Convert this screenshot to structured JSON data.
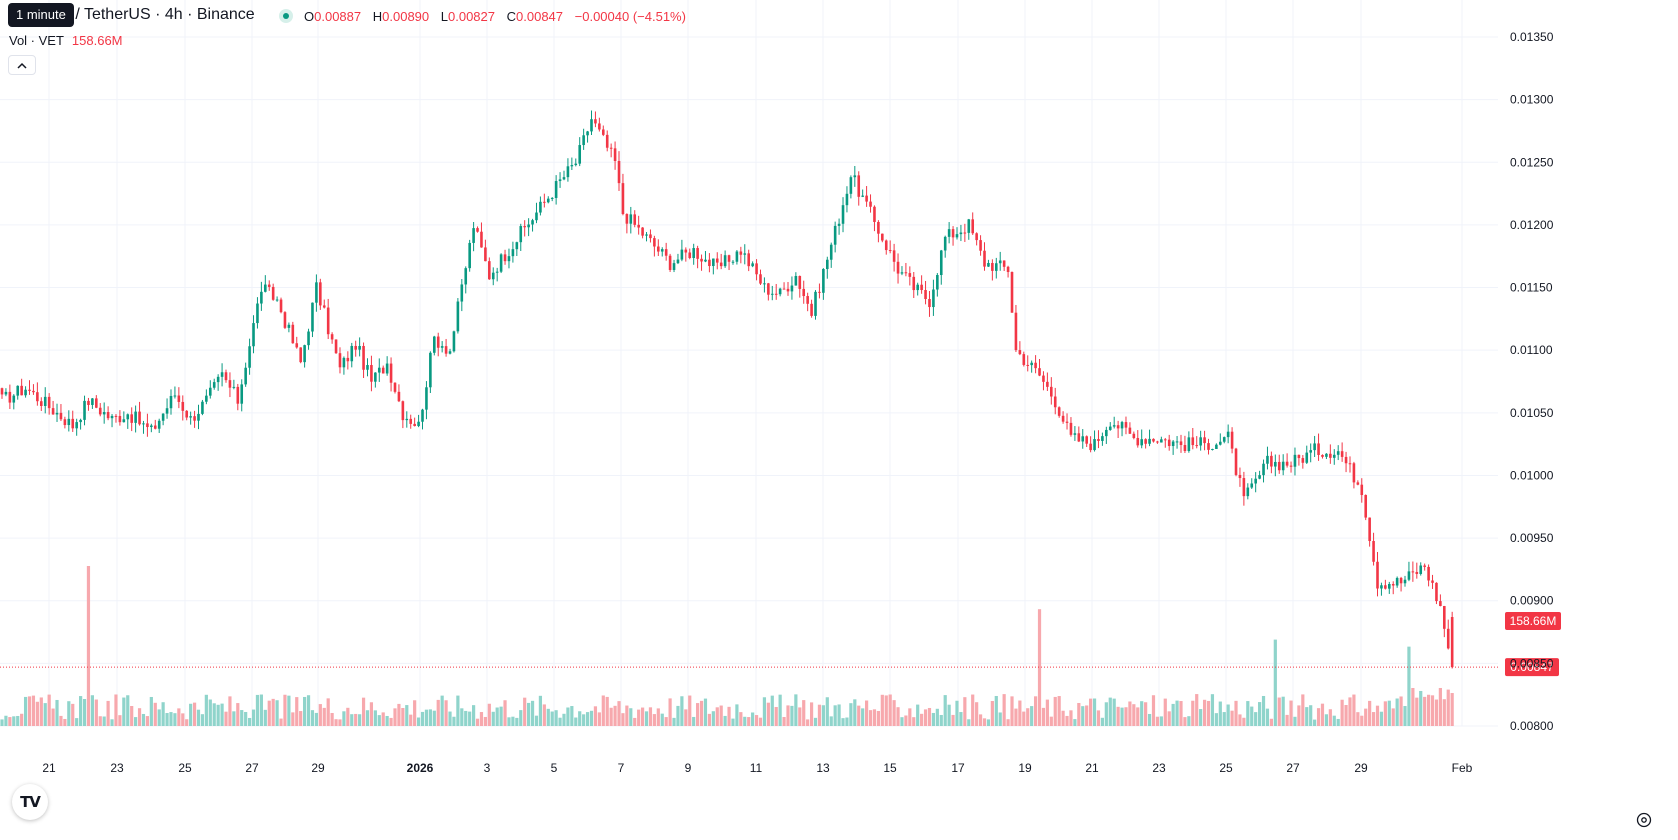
{
  "legend": {
    "title": "n / TetherUS · 4h · Binance",
    "o_label": "O",
    "o_value": "0.00887",
    "h_label": "H",
    "h_value": "0.00890",
    "l_label": "L",
    "l_value": "0.00827",
    "c_label": "C",
    "c_value": "0.00847",
    "change": "−0.00040 (−4.51%)",
    "vol_label": "Vol · VET",
    "vol_value": "158.66M",
    "tooltip": "1 minute"
  },
  "collapse_icon": "chevron-up-icon",
  "logo_text": "TV",
  "colors": {
    "up": "#089981",
    "down": "#f23645",
    "vol_up": "#8fd4cb",
    "vol_down": "#f7a8ad",
    "grid": "#f0f3fa"
  },
  "chart_data": {
    "type": "candlestick",
    "symbol": "VET / TetherUS",
    "timeframe": "4h",
    "exchange": "Binance",
    "y_axis": {
      "ticks": [
        "0.01350",
        "0.01300",
        "0.01250",
        "0.01200",
        "0.01150",
        "0.01100",
        "0.01050",
        "0.01000",
        "0.00950",
        "0.00900",
        "0.00850",
        "0.00800"
      ],
      "range": [
        0.00785,
        0.0136
      ]
    },
    "x_axis": {
      "ticks": [
        {
          "label": "21",
          "bold": false
        },
        {
          "label": "23",
          "bold": false
        },
        {
          "label": "25",
          "bold": false
        },
        {
          "label": "27",
          "bold": false
        },
        {
          "label": "29",
          "bold": false
        },
        {
          "label": "2026",
          "bold": true
        },
        {
          "label": "3",
          "bold": false
        },
        {
          "label": "5",
          "bold": false
        },
        {
          "label": "7",
          "bold": false
        },
        {
          "label": "9",
          "bold": false
        },
        {
          "label": "11",
          "bold": false
        },
        {
          "label": "13",
          "bold": false
        },
        {
          "label": "15",
          "bold": false
        },
        {
          "label": "17",
          "bold": false
        },
        {
          "label": "19",
          "bold": false
        },
        {
          "label": "21",
          "bold": false
        },
        {
          "label": "23",
          "bold": false
        },
        {
          "label": "25",
          "bold": false
        },
        {
          "label": "27",
          "bold": false
        },
        {
          "label": "29",
          "bold": false
        },
        {
          "label": "Feb",
          "bold": false
        }
      ]
    },
    "last_price": "0.00847",
    "last_volume": "158.66M",
    "close_path": [
      [
        0,
        0.0106
      ],
      [
        6,
        0.0107
      ],
      [
        12,
        0.01055
      ],
      [
        18,
        0.0104
      ],
      [
        22,
        0.0106
      ],
      [
        28,
        0.01045
      ],
      [
        32,
        0.0105
      ],
      [
        38,
        0.01035
      ],
      [
        44,
        0.01065
      ],
      [
        48,
        0.01045
      ],
      [
        52,
        0.0106
      ],
      [
        56,
        0.0108
      ],
      [
        60,
        0.0106
      ],
      [
        66,
        0.0115
      ],
      [
        70,
        0.0114
      ],
      [
        76,
        0.0109
      ],
      [
        80,
        0.0115
      ],
      [
        86,
        0.01085
      ],
      [
        90,
        0.01105
      ],
      [
        94,
        0.01075
      ],
      [
        98,
        0.0109
      ],
      [
        102,
        0.0105
      ],
      [
        106,
        0.0104
      ],
      [
        110,
        0.0111
      ],
      [
        114,
        0.011
      ],
      [
        120,
        0.012
      ],
      [
        124,
        0.0116
      ],
      [
        130,
        0.01185
      ],
      [
        136,
        0.0121
      ],
      [
        142,
        0.01235
      ],
      [
        146,
        0.0125
      ],
      [
        150,
        0.01285
      ],
      [
        156,
        0.0125
      ],
      [
        158,
        0.0121
      ],
      [
        164,
        0.0119
      ],
      [
        170,
        0.0117
      ],
      [
        176,
        0.0118
      ],
      [
        182,
        0.01165
      ],
      [
        188,
        0.0118
      ],
      [
        194,
        0.0115
      ],
      [
        198,
        0.01145
      ],
      [
        202,
        0.0116
      ],
      [
        206,
        0.0113
      ],
      [
        212,
        0.01195
      ],
      [
        216,
        0.0124
      ],
      [
        220,
        0.01215
      ],
      [
        224,
        0.0119
      ],
      [
        228,
        0.01165
      ],
      [
        232,
        0.0115
      ],
      [
        236,
        0.0114
      ],
      [
        240,
        0.0119
      ],
      [
        246,
        0.012
      ],
      [
        250,
        0.0117
      ],
      [
        256,
        0.01165
      ],
      [
        258,
        0.011
      ],
      [
        264,
        0.0108
      ],
      [
        268,
        0.0106
      ],
      [
        272,
        0.0103
      ],
      [
        278,
        0.01025
      ],
      [
        282,
        0.01045
      ],
      [
        288,
        0.0103
      ],
      [
        294,
        0.0103
      ],
      [
        300,
        0.01025
      ],
      [
        306,
        0.01025
      ],
      [
        312,
        0.0103
      ],
      [
        316,
        0.0098
      ],
      [
        322,
        0.0101
      ],
      [
        328,
        0.0101
      ],
      [
        334,
        0.0102
      ],
      [
        340,
        0.0102
      ],
      [
        346,
        0.0099
      ],
      [
        350,
        0.00915
      ],
      [
        356,
        0.00915
      ],
      [
        362,
        0.00928
      ],
      [
        366,
        0.00895
      ],
      [
        369,
        0.00847
      ]
    ],
    "volume_spikes": [
      {
        "index": 22,
        "value": 500
      },
      {
        "index": 264,
        "value": 365
      },
      {
        "index": 324,
        "value": 270
      },
      {
        "index": 358,
        "value": 248
      }
    ]
  }
}
